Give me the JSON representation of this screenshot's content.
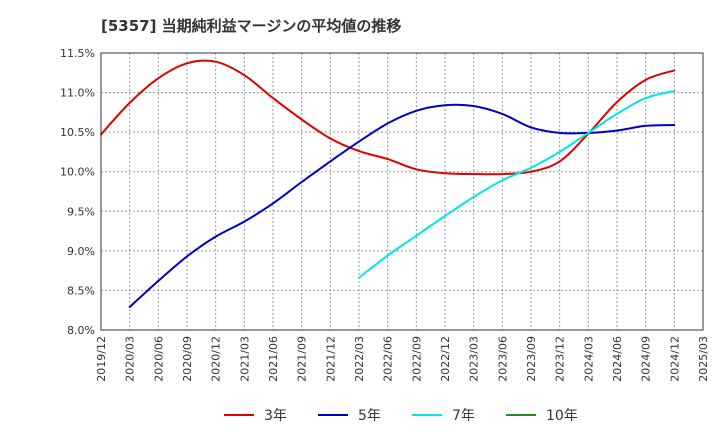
{
  "chart_data": {
    "type": "line",
    "title": "[5357]  当期純利益マージンの平均値の推移",
    "xlabel": "",
    "ylabel": "",
    "y_ticks": [
      "8.0%",
      "8.5%",
      "9.0%",
      "9.5%",
      "10.0%",
      "10.5%",
      "11.0%",
      "11.5%"
    ],
    "ylim": [
      8.0,
      11.5
    ],
    "x_ticks": [
      "2019/12",
      "2020/03",
      "2020/06",
      "2020/09",
      "2020/12",
      "2021/03",
      "2021/06",
      "2021/09",
      "2021/12",
      "2022/03",
      "2022/06",
      "2022/09",
      "2022/12",
      "2023/03",
      "2023/06",
      "2023/09",
      "2023/12",
      "2024/03",
      "2024/06",
      "2024/09",
      "2024/12",
      "2025/03"
    ],
    "grid": true,
    "legend_position": "bottom",
    "series": [
      {
        "name": "3年",
        "color": "#e00000",
        "x": [
          "2019/12",
          "2020/03",
          "2020/06",
          "2020/09",
          "2020/12",
          "2021/03",
          "2021/06",
          "2021/09",
          "2021/12",
          "2022/03",
          "2022/06",
          "2022/09",
          "2022/12",
          "2023/03",
          "2023/06",
          "2023/09",
          "2023/12",
          "2024/03",
          "2024/06",
          "2024/09",
          "2024/12"
        ],
        "values": [
          10.47,
          10.87,
          11.18,
          11.37,
          11.39,
          11.22,
          10.93,
          10.66,
          10.42,
          10.26,
          10.16,
          10.03,
          9.98,
          9.97,
          9.97,
          10.0,
          10.13,
          10.48,
          10.88,
          11.16,
          11.28
        ]
      },
      {
        "name": "5年",
        "color": "#0000cc",
        "x": [
          "2020/03",
          "2020/06",
          "2020/09",
          "2020/12",
          "2021/03",
          "2021/06",
          "2021/09",
          "2021/12",
          "2022/03",
          "2022/06",
          "2022/09",
          "2022/12",
          "2023/03",
          "2023/06",
          "2023/09",
          "2023/12",
          "2024/03",
          "2024/06",
          "2024/09",
          "2024/12"
        ],
        "values": [
          8.29,
          8.62,
          8.93,
          9.18,
          9.37,
          9.6,
          9.87,
          10.13,
          10.38,
          10.61,
          10.77,
          10.84,
          10.83,
          10.73,
          10.56,
          10.49,
          10.49,
          10.52,
          10.58,
          10.59
        ]
      },
      {
        "name": "7年",
        "color": "#00e5ee",
        "x": [
          "2022/03",
          "2022/06",
          "2022/09",
          "2022/12",
          "2023/03",
          "2023/06",
          "2023/09",
          "2023/12",
          "2024/03",
          "2024/06",
          "2024/09",
          "2024/12"
        ],
        "values": [
          8.66,
          8.94,
          9.19,
          9.44,
          9.68,
          9.89,
          10.05,
          10.25,
          10.49,
          10.73,
          10.93,
          11.02
        ]
      },
      {
        "name": "10年",
        "color": "#228b22",
        "x": [],
        "values": []
      }
    ]
  }
}
